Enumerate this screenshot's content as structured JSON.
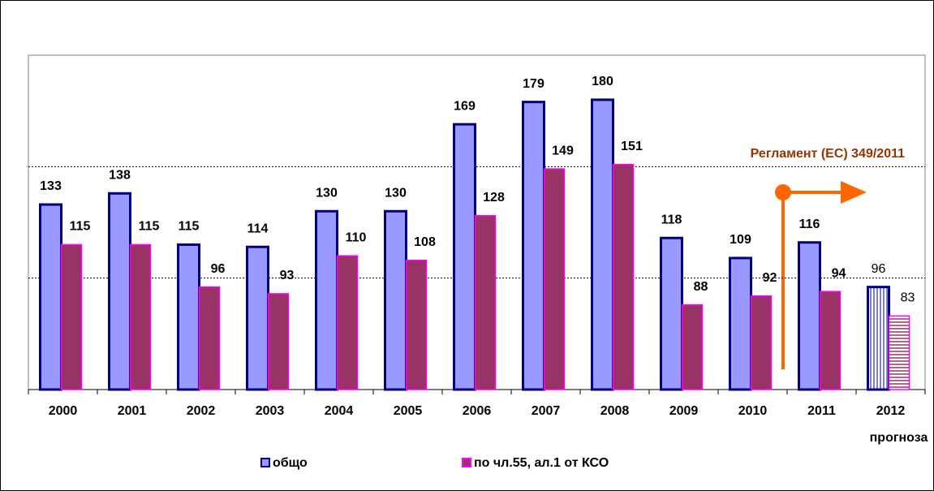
{
  "chart_data": {
    "type": "bar",
    "categories": [
      "2000",
      "2001",
      "2002",
      "2003",
      "2004",
      "2005",
      "2006",
      "2007",
      "2008",
      "2009",
      "2010",
      "2011",
      "2012"
    ],
    "category_notes": [
      null,
      null,
      null,
      null,
      null,
      null,
      null,
      null,
      null,
      null,
      null,
      null,
      "прогноза"
    ],
    "series": [
      {
        "name": "общо",
        "color": "#9999ff",
        "edge": "#000080",
        "values": [
          133,
          138,
          115,
          114,
          130,
          130,
          169,
          179,
          180,
          118,
          109,
          116,
          96
        ]
      },
      {
        "name": "по чл.55, ал.1 от КСО",
        "color": "#993366",
        "edge": "#ff00ff",
        "values": [
          115,
          115,
          96,
          93,
          110,
          108,
          128,
          149,
          151,
          88,
          92,
          94,
          83
        ]
      }
    ],
    "ylim": [
      50,
      200
    ],
    "yticks": [
      50,
      100,
      150,
      200
    ],
    "grid": true,
    "annotation": "Регламент (ЕС) 349/2011"
  }
}
